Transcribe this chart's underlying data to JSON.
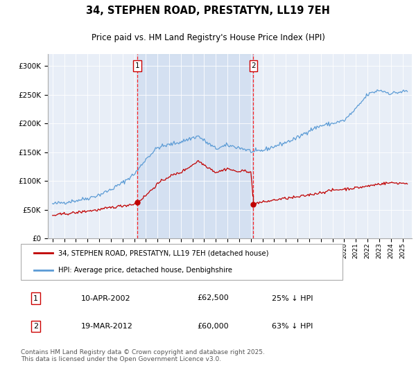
{
  "title": "34, STEPHEN ROAD, PRESTATYN, LL19 7EH",
  "subtitle": "Price paid vs. HM Land Registry's House Price Index (HPI)",
  "legend_line1": "34, STEPHEN ROAD, PRESTATYN, LL19 7EH (detached house)",
  "legend_line2": "HPI: Average price, detached house, Denbighshire",
  "transaction1_date": "10-APR-2002",
  "transaction1_price": "£62,500",
  "transaction1_hpi": "25% ↓ HPI",
  "transaction2_date": "19-MAR-2012",
  "transaction2_price": "£60,000",
  "transaction2_hpi": "63% ↓ HPI",
  "footer": "Contains HM Land Registry data © Crown copyright and database right 2025.\nThis data is licensed under the Open Government Licence v3.0.",
  "hpi_color": "#5b9bd5",
  "price_color": "#c00000",
  "vline_color": "#ff0000",
  "shade_color": "#dce6f1",
  "bg_color": "#e8eef7",
  "ylim": [
    0,
    320000
  ],
  "yticks": [
    0,
    50000,
    100000,
    150000,
    200000,
    250000,
    300000
  ],
  "transaction1_x": 2002.27,
  "transaction1_y": 62500,
  "transaction2_x": 2012.22,
  "transaction2_y": 60000,
  "xmin": 1994.6,
  "xmax": 2025.8
}
